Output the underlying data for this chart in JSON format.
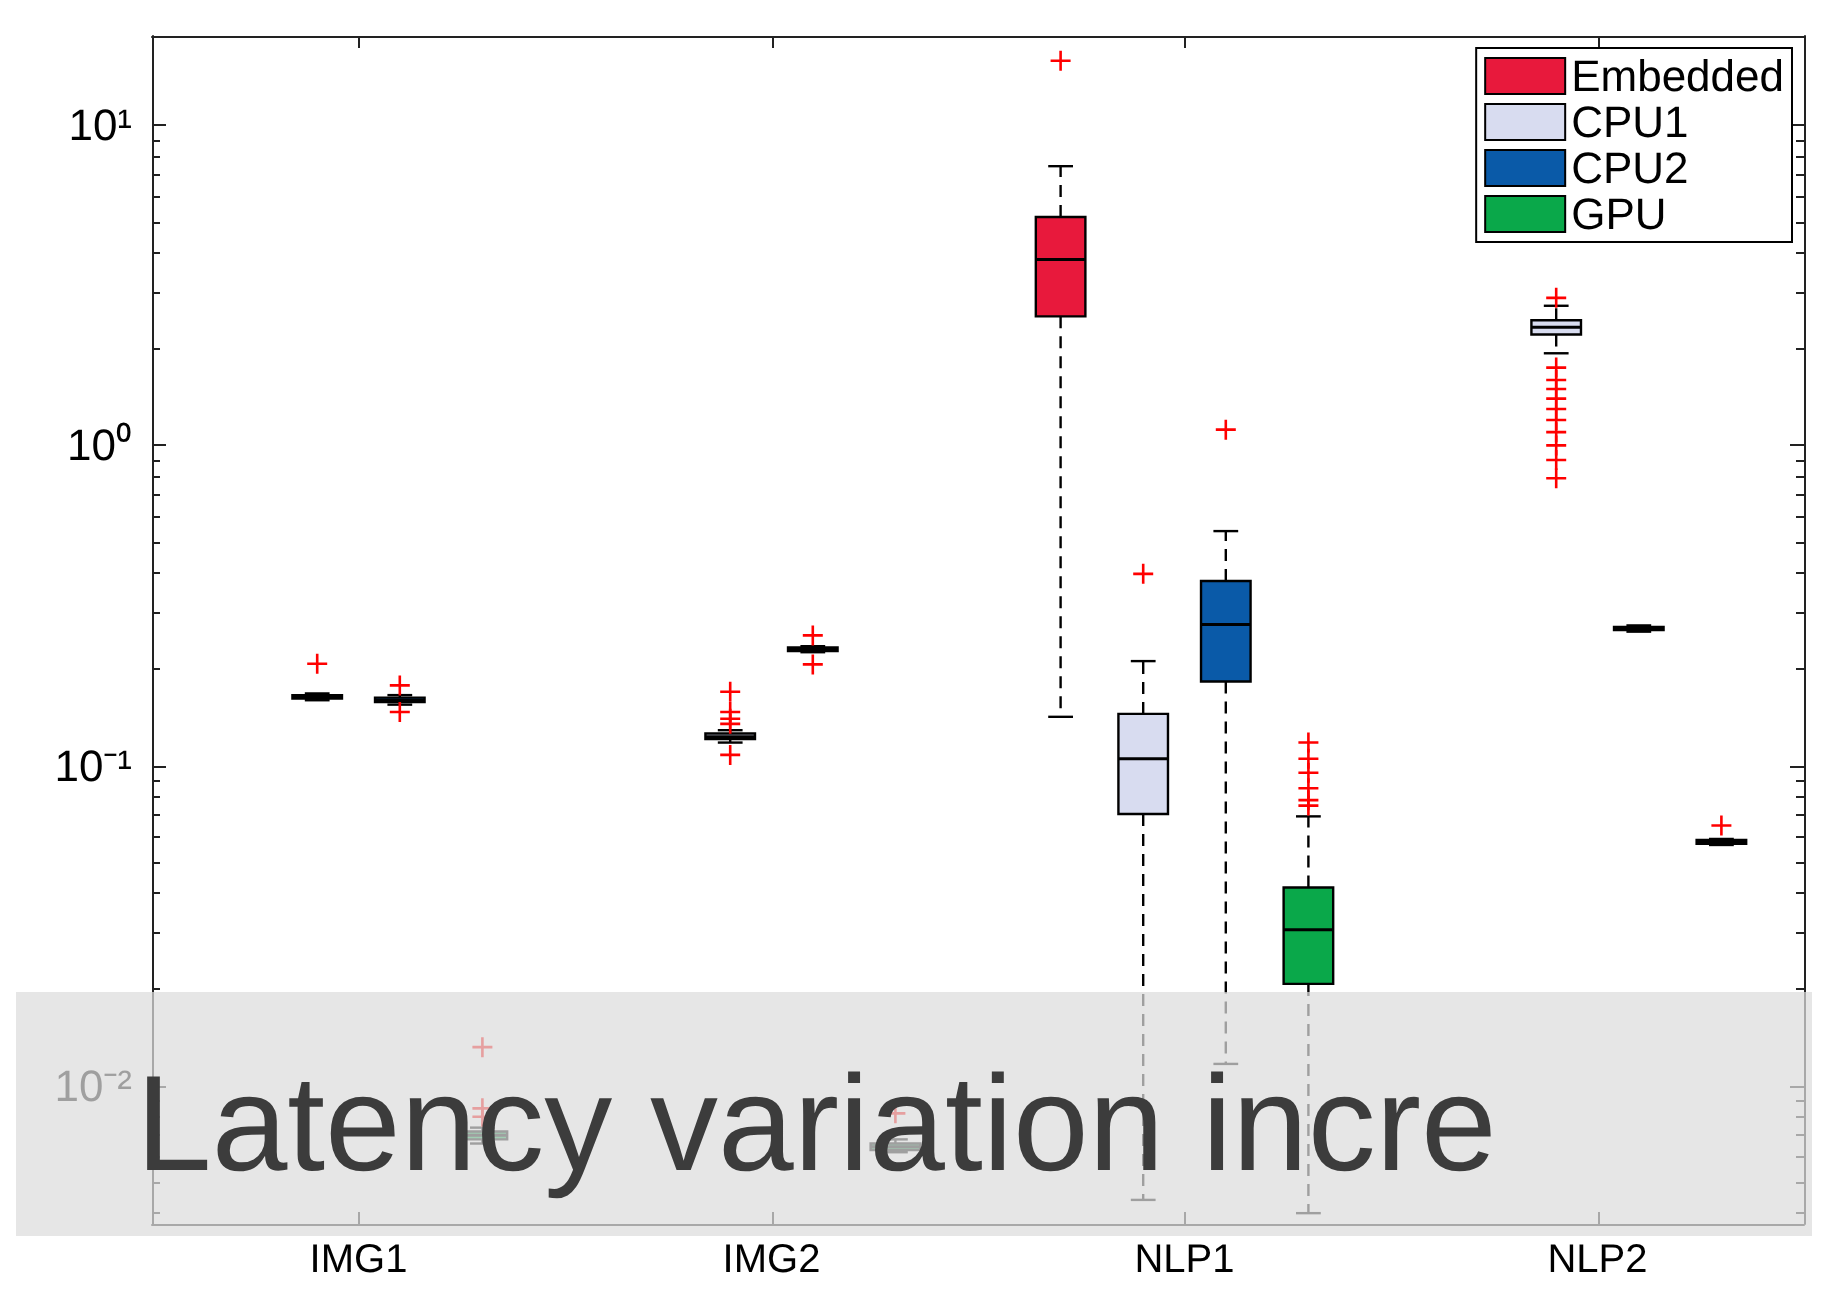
{
  "chart_data": {
    "type": "box",
    "categories": [
      "IMG1",
      "IMG2",
      "NLP1",
      "NLP2"
    ],
    "series": [
      {
        "name": "Embedded",
        "color": "#e8193c",
        "boxes": [
          null,
          null,
          {
            "low": 0.142,
            "q1": 2.53,
            "median": 3.81,
            "q3": 5.17,
            "high": 7.45,
            "outliers": [
              15.9
            ]
          },
          null
        ]
      },
      {
        "name": "CPU1",
        "color": "#d8dcf0",
        "boxes": [
          {
            "low": 0.16,
            "q1": 0.162,
            "median": 0.164,
            "q3": 0.166,
            "high": 0.168,
            "outliers": [
              0.208
            ]
          },
          {
            "low": 0.118,
            "q1": 0.121,
            "median": 0.123,
            "q3": 0.126,
            "high": 0.129,
            "outliers": [
              0.17,
              0.147,
              0.14,
              0.135,
              0.108
            ]
          },
          {
            "low": 0.0044,
            "q1": 0.0706,
            "median": 0.105,
            "q3": 0.145,
            "high": 0.212,
            "outliers": [
              0.397
            ]
          },
          {
            "low": 1.94,
            "q1": 2.22,
            "median": 2.34,
            "q3": 2.46,
            "high": 2.73,
            "outliers": [
              2.89,
              1.75,
              1.6,
              1.5,
              1.4,
              1.3,
              1.2,
              1.1,
              1.0,
              0.9,
              0.79
            ]
          }
        ]
      },
      {
        "name": "CPU2",
        "color": "#0a5aa8",
        "boxes": [
          {
            "low": 0.155,
            "q1": 0.158,
            "median": 0.16,
            "q3": 0.163,
            "high": 0.166,
            "outliers": [
              0.178,
              0.147
            ]
          },
          {
            "low": 0.226,
            "q1": 0.228,
            "median": 0.231,
            "q3": 0.234,
            "high": 0.236,
            "outliers": [
              0.255,
              0.207
            ]
          },
          {
            "low": 0.0117,
            "q1": 0.183,
            "median": 0.276,
            "q3": 0.377,
            "high": 0.54,
            "outliers": [
              1.12
            ]
          },
          {
            "low": 0.262,
            "q1": 0.265,
            "median": 0.268,
            "q3": 0.271,
            "high": 0.274
          }
        ]
      },
      {
        "name": "GPU",
        "color": "#0aa84a",
        "boxes": [
          {
            "low": 0.0066,
            "q1": 0.0068,
            "median": 0.007,
            "q3": 0.0072,
            "high": 0.0074,
            "outliers": [
              0.0132,
              0.0085,
              0.008
            ]
          },
          {
            "low": 0.0062,
            "q1": 0.0063,
            "median": 0.00645,
            "q3": 0.0066,
            "high": 0.0068,
            "outliers": [
              0.0082
            ]
          },
          {
            "low": 0.004,
            "q1": 0.0208,
            "median": 0.0307,
            "q3": 0.0416,
            "high": 0.0694,
            "outliers": [
              0.118,
              0.105,
              0.095,
              0.085,
              0.078,
              0.075
            ]
          },
          {
            "low": 0.0565,
            "q1": 0.057,
            "median": 0.0578,
            "q3": 0.0586,
            "high": 0.059,
            "outliers": [
              0.065
            ]
          }
        ]
      }
    ],
    "log": "y",
    "ylim": [
      0.0037,
      19
    ],
    "yticks": [
      {
        "value": 0.01,
        "label": "10⁻²"
      },
      {
        "value": 0.1,
        "label": "10⁻¹"
      },
      {
        "value": 1,
        "label": "10⁰"
      },
      {
        "value": 10,
        "label": "10¹"
      }
    ],
    "grid": false,
    "legend": "top right",
    "line_style": "dashed",
    "annotations": [
      "Latency variation incre"
    ]
  }
}
